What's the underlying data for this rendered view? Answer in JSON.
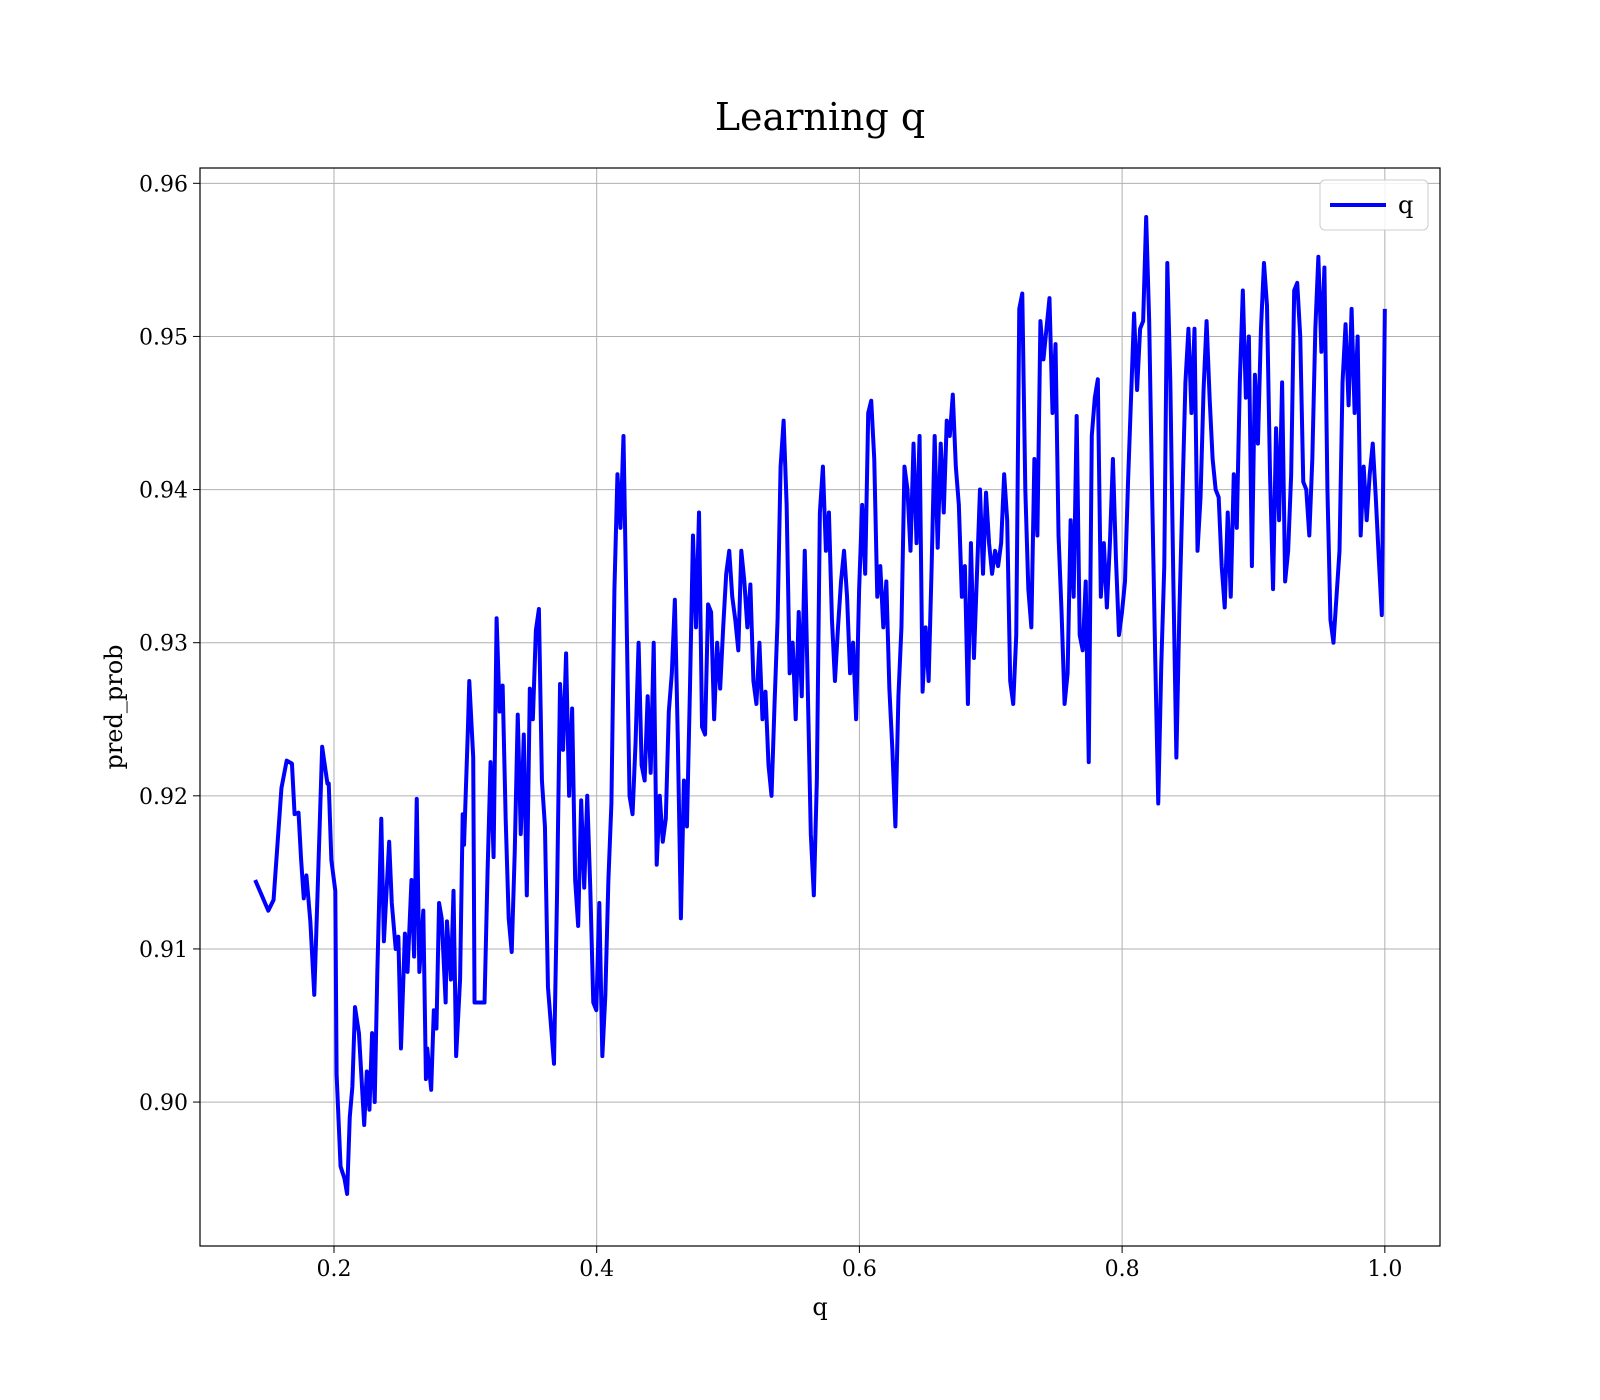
{
  "chart_data": {
    "type": "line",
    "title": "Learning q",
    "xlabel": "q",
    "ylabel": "pred_prob",
    "x": [
      0.14,
      0.15,
      0.154,
      0.16,
      0.164,
      0.168,
      0.17,
      0.173,
      0.175,
      0.177,
      0.179,
      0.182,
      0.185,
      0.188,
      0.191,
      0.195,
      0.196,
      0.198,
      0.201,
      0.202,
      0.205,
      0.208,
      0.21,
      0.212,
      0.214,
      0.216,
      0.219,
      0.223,
      0.225,
      0.227,
      0.229,
      0.231,
      0.233,
      0.236,
      0.238,
      0.242,
      0.244,
      0.247,
      0.249,
      0.251,
      0.254,
      0.256,
      0.259,
      0.261,
      0.263,
      0.265,
      0.268,
      0.27,
      0.271,
      0.274,
      0.276,
      0.278,
      0.28,
      0.282,
      0.285,
      0.286,
      0.289,
      0.291,
      0.293,
      0.296,
      0.298,
      0.299,
      0.302,
      0.303,
      0.306,
      0.307,
      0.3146,
      0.3169,
      0.3192,
      0.3215,
      0.3238,
      0.3261,
      0.3284,
      0.3307,
      0.333,
      0.3353,
      0.3376,
      0.3399,
      0.3422,
      0.3445,
      0.3468,
      0.3491,
      0.3514,
      0.3537,
      0.356,
      0.3583,
      0.3606,
      0.3629,
      0.3652,
      0.3675,
      0.3698,
      0.3721,
      0.3744,
      0.3767,
      0.379,
      0.3813,
      0.3836,
      0.3859,
      0.3882,
      0.3905,
      0.3928,
      0.3951,
      0.3974,
      0.3997,
      0.402,
      0.4043,
      0.4066,
      0.4089,
      0.4112,
      0.4135,
      0.4158,
      0.4181,
      0.4204,
      0.4227,
      0.425,
      0.4273,
      0.4296,
      0.4319,
      0.4342,
      0.4365,
      0.4388,
      0.4411,
      0.4434,
      0.4457,
      0.448,
      0.4503,
      0.4526,
      0.4549,
      0.4572,
      0.4595,
      0.4618,
      0.4641,
      0.4664,
      0.4687,
      0.471,
      0.4733,
      0.4756,
      0.4779,
      0.4802,
      0.4825,
      0.4848,
      0.4871,
      0.4894,
      0.4917,
      0.494,
      0.4963,
      0.4986,
      0.5009,
      0.5032,
      0.5055,
      0.5078,
      0.5101,
      0.5124,
      0.5147,
      0.517,
      0.5193,
      0.5216,
      0.5239,
      0.5262,
      0.5285,
      0.5308,
      0.5331,
      0.5354,
      0.5377,
      0.54,
      0.5423,
      0.5446,
      0.5469,
      0.5492,
      0.5515,
      0.5538,
      0.5561,
      0.5584,
      0.5607,
      0.563,
      0.5653,
      0.5676,
      0.5699,
      0.5722,
      0.5745,
      0.5768,
      0.5791,
      0.5814,
      0.5837,
      0.586,
      0.5883,
      0.5906,
      0.5929,
      0.5952,
      0.5975,
      0.5998,
      0.6021,
      0.6044,
      0.6067,
      0.609,
      0.6113,
      0.6136,
      0.6159,
      0.6182,
      0.6205,
      0.6228,
      0.6251,
      0.6274,
      0.6297,
      0.632,
      0.6343,
      0.6366,
      0.6389,
      0.6412,
      0.6435,
      0.6458,
      0.6481,
      0.6504,
      0.6527,
      0.655,
      0.6573,
      0.6596,
      0.6619,
      0.6642,
      0.6665,
      0.6688,
      0.6711,
      0.6734,
      0.6757,
      0.678,
      0.6803,
      0.6826,
      0.6849,
      0.6872,
      0.6895,
      0.6918,
      0.6941,
      0.6964,
      0.6987,
      0.701,
      0.7033,
      0.7056,
      0.7079,
      0.7102,
      0.7125,
      0.7148,
      0.7171,
      0.7194,
      0.7217,
      0.724,
      0.7263,
      0.7286,
      0.7309,
      0.7332,
      0.7355,
      0.7378,
      0.7401,
      0.7424,
      0.7447,
      0.747,
      0.7493,
      0.7516,
      0.7539,
      0.7562,
      0.7585,
      0.7608,
      0.7631,
      0.7654,
      0.7677,
      0.77,
      0.7723,
      0.7746,
      0.7769,
      0.7792,
      0.7815,
      0.7838,
      0.7861,
      0.7884,
      0.7907,
      0.793,
      0.7953,
      0.7976,
      0.7999,
      0.8022,
      0.8045,
      0.8068,
      0.8091,
      0.8114,
      0.8137,
      0.816,
      0.8183,
      0.8206,
      0.8229,
      0.8252,
      0.8275,
      0.8298,
      0.8321,
      0.8344,
      0.8367,
      0.839,
      0.8413,
      0.8436,
      0.8459,
      0.8482,
      0.8505,
      0.8528,
      0.8551,
      0.8574,
      0.8597,
      0.862,
      0.8643,
      0.8666,
      0.8689,
      0.8712,
      0.8735,
      0.8758,
      0.8781,
      0.8804,
      0.8827,
      0.885,
      0.8873,
      0.8896,
      0.8919,
      0.8942,
      0.8965,
      0.8988,
      0.9011,
      0.9034,
      0.9057,
      0.908,
      0.9103,
      0.9126,
      0.9149,
      0.9172,
      0.9195,
      0.9218,
      0.9241,
      0.9264,
      0.9287,
      0.931,
      0.9333,
      0.9356,
      0.9379,
      0.9402,
      0.9425,
      0.9448,
      0.9471,
      0.9494,
      0.9517,
      0.954,
      0.9563,
      0.9586,
      0.9609,
      0.9632,
      0.9655,
      0.9678,
      0.9701,
      0.9724,
      0.9747,
      0.977,
      0.9793,
      0.9816,
      0.9839,
      0.9862,
      0.9885,
      0.9908,
      0.9931,
      0.9954,
      0.9977,
      1.0
    ],
    "series": [
      {
        "name": "q",
        "color": "#0000ff",
        "values": [
          0.9145,
          0.9125,
          0.9132,
          0.9205,
          0.9223,
          0.9221,
          0.9188,
          0.9189,
          0.9158,
          0.9133,
          0.9148,
          0.9118,
          0.907,
          0.915,
          0.9232,
          0.9208,
          0.9208,
          0.9158,
          0.9138,
          0.9018,
          0.8958,
          0.895,
          0.894,
          0.899,
          0.901,
          0.9062,
          0.9045,
          0.8985,
          0.902,
          0.8995,
          0.9045,
          0.9,
          0.9085,
          0.9185,
          0.9105,
          0.917,
          0.913,
          0.91,
          0.9108,
          0.9035,
          0.911,
          0.9085,
          0.9145,
          0.9095,
          0.9198,
          0.9085,
          0.9125,
          0.9015,
          0.9035,
          0.9008,
          0.906,
          0.9048,
          0.913,
          0.912,
          0.9065,
          0.9118,
          0.908,
          0.9138,
          0.903,
          0.908,
          0.9188,
          0.9168,
          0.9245,
          0.9275,
          0.9225,
          0.9065,
          0.9065,
          0.915,
          0.9222,
          0.916,
          0.9316,
          0.9255,
          0.9272,
          0.9185,
          0.912,
          0.9098,
          0.9163,
          0.9253,
          0.9175,
          0.924,
          0.9135,
          0.927,
          0.925,
          0.9308,
          0.9322,
          0.921,
          0.918,
          0.9075,
          0.905,
          0.9025,
          0.9135,
          0.9273,
          0.923,
          0.9293,
          0.92,
          0.9257,
          0.9145,
          0.9115,
          0.9197,
          0.914,
          0.92,
          0.914,
          0.9065,
          0.906,
          0.913,
          0.903,
          0.907,
          0.9145,
          0.9195,
          0.9335,
          0.941,
          0.9375,
          0.9435,
          0.932,
          0.92,
          0.9188,
          0.9235,
          0.93,
          0.922,
          0.921,
          0.9265,
          0.9215,
          0.93,
          0.9155,
          0.92,
          0.917,
          0.9185,
          0.9255,
          0.928,
          0.9328,
          0.9235,
          0.912,
          0.921,
          0.918,
          0.927,
          0.937,
          0.931,
          0.9385,
          0.9245,
          0.924,
          0.9325,
          0.932,
          0.925,
          0.93,
          0.927,
          0.931,
          0.9345,
          0.936,
          0.933,
          0.9315,
          0.9295,
          0.936,
          0.934,
          0.931,
          0.9338,
          0.9275,
          0.926,
          0.93,
          0.925,
          0.9268,
          0.922,
          0.92,
          0.926,
          0.9315,
          0.9415,
          0.9445,
          0.939,
          0.928,
          0.93,
          0.925,
          0.932,
          0.9265,
          0.936,
          0.927,
          0.9175,
          0.9135,
          0.921,
          0.9385,
          0.9415,
          0.936,
          0.9385,
          0.9315,
          0.9275,
          0.931,
          0.934,
          0.936,
          0.933,
          0.928,
          0.93,
          0.925,
          0.9335,
          0.939,
          0.9345,
          0.945,
          0.9458,
          0.942,
          0.933,
          0.935,
          0.931,
          0.934,
          0.927,
          0.923,
          0.918,
          0.9265,
          0.931,
          0.9415,
          0.94,
          0.936,
          0.943,
          0.9365,
          0.9435,
          0.9268,
          0.931,
          0.9275,
          0.935,
          0.9435,
          0.9362,
          0.943,
          0.9385,
          0.9445,
          0.9435,
          0.9462,
          0.9415,
          0.939,
          0.933,
          0.935,
          0.926,
          0.9365,
          0.929,
          0.9345,
          0.94,
          0.9345,
          0.9398,
          0.9365,
          0.9345,
          0.936,
          0.935,
          0.9365,
          0.941,
          0.938,
          0.9275,
          0.926,
          0.9305,
          0.9518,
          0.9528,
          0.94,
          0.9335,
          0.931,
          0.942,
          0.937,
          0.951,
          0.9485,
          0.9505,
          0.9525,
          0.945,
          0.9495,
          0.937,
          0.932,
          0.926,
          0.928,
          0.938,
          0.933,
          0.9448,
          0.9305,
          0.9295,
          0.934,
          0.9222,
          0.9435,
          0.946,
          0.9472,
          0.933,
          0.9365,
          0.9323,
          0.9365,
          0.942,
          0.9355,
          0.9305,
          0.932,
          0.934,
          0.9405,
          0.946,
          0.9515,
          0.9465,
          0.9505,
          0.951,
          0.9578,
          0.951,
          0.9395,
          0.929,
          0.9195,
          0.9285,
          0.935,
          0.9548,
          0.947,
          0.934,
          0.9225,
          0.932,
          0.9395,
          0.947,
          0.9505,
          0.945,
          0.9505,
          0.936,
          0.9395,
          0.9465,
          0.951,
          0.946,
          0.942,
          0.94,
          0.9395,
          0.935,
          0.9323,
          0.9385,
          0.933,
          0.941,
          0.9375,
          0.947,
          0.953,
          0.946,
          0.95,
          0.935,
          0.9475,
          0.943,
          0.9505,
          0.9548,
          0.952,
          0.941,
          0.9335,
          0.944,
          0.938,
          0.947,
          0.934,
          0.936,
          0.941,
          0.953,
          0.9535,
          0.95,
          0.9405,
          0.94,
          0.937,
          0.942,
          0.9505,
          0.9552,
          0.949,
          0.9545,
          0.94,
          0.9315,
          0.93,
          0.933,
          0.936,
          0.947,
          0.9508,
          0.9455,
          0.9518,
          0.945,
          0.95,
          0.937,
          0.9415,
          0.938,
          0.941,
          0.943,
          0.9395,
          0.9355,
          0.9318,
          0.9518
        ]
      }
    ],
    "xlim": [
      0.098,
      1.042
    ],
    "ylim": [
      0.8906,
      0.961
    ],
    "xticks": [
      0.2,
      0.4,
      0.6,
      0.8,
      {
        "value": 1,
        "label": "1.0"
      }
    ],
    "yticks": [
      {
        "value": 0.9,
        "label": "0.90"
      },
      0.91,
      0.92,
      0.93,
      0.94,
      0.95,
      0.96
    ],
    "grid": true,
    "legend": "upper right"
  }
}
